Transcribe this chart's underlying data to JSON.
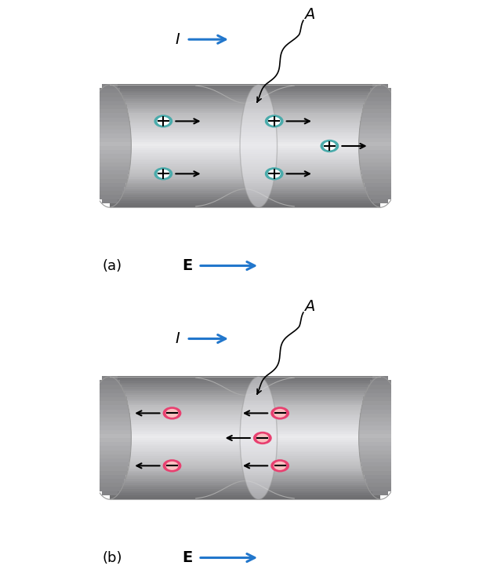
{
  "fig_width": 6.25,
  "fig_height": 7.44,
  "bg_color": "#ffffff",
  "positive_fill": "#4aabab",
  "negative_fill": "#e84070",
  "blue_arrow_color": "#2277cc",
  "part_a_label": "(a)",
  "part_b_label": "(b)",
  "I_label": "I",
  "A_label": "A",
  "E_label": "E",
  "tube_body_color": "#d8d8de",
  "tube_light_color": "#ebebef",
  "tube_dark_color": "#8a8a92",
  "tube_edge_color": "#aaaaaf"
}
